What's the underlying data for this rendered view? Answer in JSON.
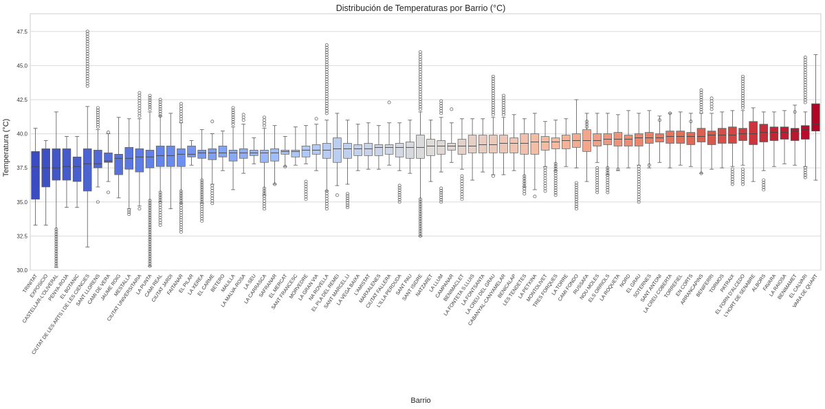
{
  "chart_data": {
    "type": "box",
    "title": "Distribución de Temperaturas por Barrio (°C)",
    "xlabel": "Barrio",
    "ylabel": "Temperatura (°C)",
    "ylim": [
      30.0,
      48.8
    ],
    "yticks": [
      "30.0",
      "32.5",
      "35.0",
      "37.5",
      "40.0",
      "42.5",
      "45.0",
      "47.5"
    ],
    "grid": true,
    "palette": [
      "#3b4cc0",
      "#6688ee",
      "#aac7fd",
      "#dddcdc",
      "#f7b89c",
      "#e36c55",
      "#b40426"
    ],
    "categories": [
      "TRINITAT",
      "EXPOSICIO",
      "CASTELLAR-L'OLIVERAL",
      "PENYA-ROJA",
      "EL BOTANIC",
      "CIUTAT DE LES ARTS I DE LES CIENCIES",
      "SANT LLORENS",
      "CAMI DE VERA",
      "JAUME ROIG",
      "MESTALLA",
      "CIUTAT UNIVERSITARIA",
      "LA PUNTA",
      "CAMI REAL",
      "CIUTAT JARDI",
      "FAITANAR",
      "EL PILAR",
      "LA XEREA",
      "EL CARME",
      "BETERO",
      "MALILLA",
      "LA MALVA-ROSA",
      "LA SEU",
      "LA CARRASCA",
      "SAFRANAR",
      "EL MERCAT",
      "SANT FRANCESC",
      "MORVEDRE",
      "LA GRAN VIA",
      "NA ROVELLA",
      "EL PLA DEL REMEI",
      "SANT MARCEL.LI",
      "LA VEGA BAIXA",
      "L'AMISTAT",
      "MARXALENES",
      "CIUTAT FALLERA",
      "L'ILLA PERDUDA",
      "SANT PAU",
      "SANT ISIDRE",
      "NATZARET",
      "LA LLUM",
      "CAMPANAR",
      "BENIMACLET",
      "LA FONTETA S.LLUIS",
      "LA FONTSANTA",
      "LA CREU DEL GRAU",
      "CABANYAL-CANYAMELAR",
      "BENICALAP",
      "LES TENDETES",
      "LA PETXINA",
      "MONTOLIVET",
      "TRES FORQUES",
      "LA TORRE",
      "CAMI FONDO",
      "RUSSAFA",
      "NOU MOLES",
      "ELS ORRIOLS",
      "LA ROQUETA",
      "NORD",
      "EL GRAU",
      "SOTERNES",
      "SANT ANTONI",
      "LA CREU COBERTA",
      "TORREFIEL",
      "EN CORTS",
      "ARRANCAPINS",
      "BENIFERRI",
      "TORMOS",
      "PATRAIX",
      "EL FORN D'ALCEDO",
      "L'HORT DE SENABRE",
      "ALBORS",
      "FAVARA",
      "LA RAIOSA",
      "BENIMAMET",
      "EL CALVARI",
      "VARA DE QUART"
    ],
    "medians": [
      37.6,
      37.5,
      37.5,
      37.6,
      37.6,
      37.8,
      37.8,
      38.0,
      38.2,
      38.2,
      38.3,
      38.3,
      38.4,
      38.4,
      38.5,
      38.5,
      38.6,
      38.6,
      38.6,
      38.6,
      38.6,
      38.6,
      38.6,
      38.6,
      38.7,
      38.7,
      38.8,
      38.8,
      38.8,
      38.9,
      38.9,
      38.9,
      38.9,
      39.0,
      39.0,
      39.0,
      39.0,
      39.0,
      39.1,
      39.1,
      39.1,
      39.1,
      39.1,
      39.2,
      39.2,
      39.3,
      39.3,
      39.3,
      39.4,
      39.4,
      39.4,
      39.5,
      39.5,
      39.5,
      39.5,
      39.6,
      39.6,
      39.6,
      39.7,
      39.7,
      39.7,
      39.8,
      39.8,
      39.8,
      39.8,
      39.9,
      39.9,
      39.9,
      40.0,
      40.0,
      40.1,
      40.1,
      40.1,
      40.2,
      40.3,
      40.7
    ],
    "q1": [
      35.2,
      36.1,
      36.6,
      36.6,
      36.5,
      35.8,
      37.5,
      37.9,
      37.0,
      37.4,
      37.2,
      37.5,
      37.6,
      37.6,
      37.6,
      38.3,
      38.2,
      38.1,
      38.3,
      38.0,
      38.2,
      38.4,
      37.9,
      38.0,
      38.5,
      38.3,
      38.3,
      38.5,
      38.2,
      37.9,
      38.2,
      38.4,
      38.4,
      38.4,
      38.5,
      38.3,
      38.2,
      38.2,
      38.4,
      38.5,
      38.8,
      38.5,
      38.6,
      38.6,
      38.6,
      38.6,
      38.6,
      38.5,
      38.5,
      38.8,
      38.9,
      38.9,
      39.0,
      38.7,
      39.1,
      39.2,
      39.1,
      39.1,
      39.1,
      39.3,
      39.4,
      39.3,
      39.3,
      39.2,
      39.4,
      39.2,
      39.3,
      39.3,
      39.5,
      39.2,
      39.4,
      39.5,
      39.6,
      39.5,
      39.6,
      40.2
    ],
    "q3": [
      38.7,
      38.9,
      38.9,
      38.9,
      38.3,
      38.9,
      38.8,
      38.6,
      38.5,
      39.0,
      38.9,
      38.8,
      39.1,
      39.1,
      38.9,
      39.1,
      38.8,
      38.9,
      39.1,
      38.8,
      38.9,
      38.8,
      38.8,
      38.9,
      38.8,
      38.8,
      39.1,
      39.2,
      39.3,
      39.7,
      39.3,
      39.2,
      39.3,
      39.2,
      39.2,
      39.3,
      39.4,
      39.9,
      39.6,
      39.5,
      39.3,
      39.6,
      39.9,
      39.9,
      39.9,
      39.9,
      39.7,
      40.0,
      40.0,
      39.8,
      39.7,
      39.9,
      40.0,
      40.3,
      40.0,
      40.0,
      40.1,
      39.9,
      40.0,
      40.1,
      40.0,
      40.2,
      40.2,
      40.1,
      40.4,
      40.2,
      40.4,
      40.5,
      40.4,
      40.9,
      40.7,
      40.5,
      40.5,
      40.4,
      40.6,
      42.2
    ],
    "wlow": [
      33.3,
      33.3,
      30.2,
      34.6,
      34.6,
      31.7,
      36.1,
      36.5,
      35.3,
      34.5,
      34.7,
      30.3,
      35.0,
      34.5,
      34.9,
      37.7,
      34.9,
      36.3,
      37.3,
      35.9,
      37.1,
      37.8,
      35.5,
      36.3,
      37.6,
      37.7,
      37.8,
      37.3,
      35.8,
      36.2,
      36.3,
      37.3,
      37.4,
      37.4,
      37.7,
      37.3,
      37.1,
      32.5,
      36.5,
      37.2,
      37.9,
      37.4,
      36.6,
      37.2,
      37.0,
      37.0,
      37.3,
      36.1,
      35.9,
      37.6,
      37.3,
      37.6,
      37.5,
      36.5,
      37.9,
      37.0,
      37.3,
      37.5,
      37.7,
      37.5,
      37.9,
      37.5,
      37.7,
      37.6,
      37.1,
      37.4,
      37.5,
      37.6,
      37.7,
      36.5,
      37.3,
      37.6,
      37.8,
      37.7,
      37.6,
      36.6
    ],
    "whigh": [
      40.4,
      39.5,
      41.6,
      39.8,
      39.8,
      42.0,
      40.3,
      40.0,
      41.2,
      41.1,
      41.1,
      41.6,
      41.3,
      41.5,
      40.8,
      39.5,
      40.3,
      40.0,
      40.2,
      40.5,
      40.7,
      39.7,
      40.4,
      40.6,
      39.8,
      40.5,
      40.6,
      40.7,
      41.0,
      41.5,
      41.0,
      40.7,
      40.8,
      40.6,
      40.8,
      40.8,
      41.0,
      41.6,
      41.0,
      41.2,
      40.8,
      41.1,
      41.1,
      41.1,
      41.2,
      41.2,
      41.4,
      41.1,
      41.5,
      40.9,
      41.0,
      41.1,
      42.5,
      41.5,
      41.5,
      41.5,
      41.4,
      41.7,
      41.5,
      41.7,
      41.3,
      41.5,
      41.6,
      41.5,
      41.5,
      41.5,
      41.6,
      41.7,
      41.7,
      41.9,
      41.6,
      41.6,
      41.7,
      42.1,
      41.6,
      45.8
    ],
    "flier_high": [
      [],
      [],
      [],
      [],
      [],
      [
        43.5,
        47.5
      ],
      [
        40.5,
        41.9
      ],
      [
        40.1
      ],
      [],
      [],
      [
        41.3,
        43.0
      ],
      [
        41.8,
        42.8
      ],
      [
        41.3,
        42.5
      ],
      [],
      [
        40.9,
        42.2
      ],
      [],
      [],
      [
        40.9
      ],
      [],
      [
        40.7,
        41.9
      ],
      [
        41.0,
        41.4
      ],
      [],
      [
        40.6,
        41.2
      ],
      [],
      [],
      [],
      [],
      [
        41.1
      ],
      [
        41.5,
        46.5
      ],
      [],
      [],
      [],
      [],
      [],
      [
        42.3
      ],
      [],
      [],
      [
        41.8,
        46.0
      ],
      [],
      [
        41.5,
        42.4
      ],
      [
        41.8
      ],
      [],
      [],
      [],
      [
        41.4,
        44.2
      ],
      [
        41.4,
        42.8
      ],
      [],
      [],
      [],
      [],
      [],
      [],
      [],
      [
        40.5,
        40.9
      ],
      [],
      [],
      [],
      [],
      [],
      [],
      [
        41.0
      ],
      [
        41.5
      ],
      [],
      [
        40.9
      ],
      [
        41.6,
        43.2
      ],
      [
        41.8,
        42.6
      ],
      [],
      [],
      [
        41.9,
        44.2
      ],
      [],
      [],
      [],
      [],
      [
        41.6
      ],
      [
        42.3,
        45.6
      ],
      []
    ],
    "flier_low": [
      [],
      [],
      [
        30.3,
        33.0
      ],
      [],
      [],
      [],
      [
        35.0
      ],
      [
        35.7
      ],
      [],
      [
        34.1,
        34.4
      ],
      [
        34.5
      ],
      [
        30.3,
        35.1
      ],
      [
        33.3,
        35.7
      ],
      [],
      [
        32.8,
        35.8
      ],
      [],
      [
        33.6,
        36.6
      ],
      [
        34.9,
        36.2
      ],
      [],
      [],
      [],
      [],
      [
        34.5,
        36.0
      ],
      [
        36.3
      ],
      [
        37.6
      ],
      [],
      [
        35.2,
        36.5
      ],
      [],
      [
        34.5,
        35.8
      ],
      [
        35.5
      ],
      [
        34.6,
        35.6
      ],
      [],
      [],
      [],
      [],
      [
        35.0,
        36.2
      ],
      [],
      [
        32.5,
        35.2
      ],
      [],
      [
        35.0,
        36.0
      ],
      [],
      [
        35.2,
        36.9
      ],
      [],
      [],
      [
        36.9
      ],
      [],
      [],
      [
        35.6,
        36.9
      ],
      [
        35.4
      ],
      [
        35.8,
        37.5
      ],
      [
        35.5,
        37.8
      ],
      [],
      [
        34.5,
        36.4
      ],
      [],
      [
        35.7,
        37.5
      ],
      [
        35.7,
        37.5
      ],
      [
        37.4
      ],
      [],
      [
        35.0,
        37.6
      ],
      [
        37.7
      ],
      [],
      [],
      [],
      [],
      [
        37.1
      ],
      [],
      [],
      [
        36.3,
        37.4
      ],
      [
        36.3,
        37.4
      ],
      [],
      [
        35.9,
        36.6
      ],
      [],
      [],
      [],
      [
        36.8,
        37.5
      ],
      []
    ]
  }
}
